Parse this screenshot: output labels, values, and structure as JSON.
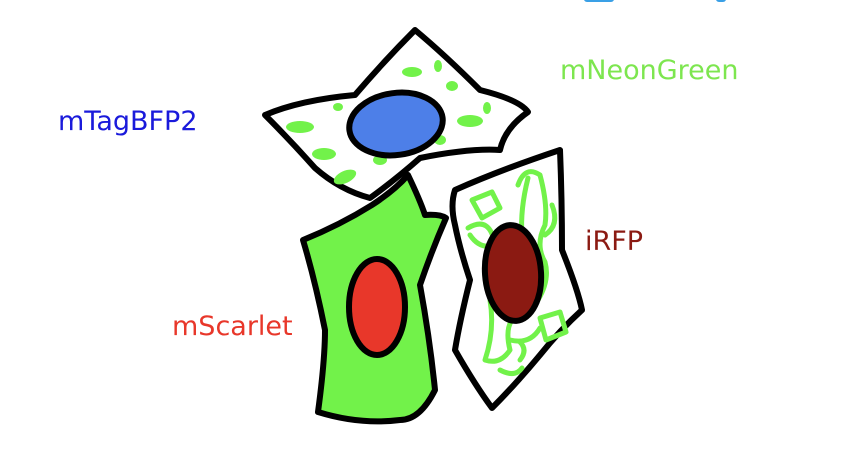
{
  "labels": {
    "blue": "mTagBFP2",
    "green": "mNeonGreen",
    "farred": "iRFP",
    "red": "mScarlet"
  },
  "colors": {
    "blue_text": "#1a1adb",
    "green_text": "#7de64f",
    "farred_text": "#8b1a12",
    "red_text": "#e8372a",
    "nucleus_blue": "#4d7fe8",
    "nucleus_red": "#e8372a",
    "nucleus_darkred": "#8b1a12",
    "green_fill": "#72f24a",
    "outline": "#000000",
    "top_stub": "#3aa0e6"
  },
  "icons": {
    "cell_top": "fibroblast-cell-icon",
    "cell_green": "fibroblast-cell-icon",
    "cell_right": "fibroblast-cell-icon"
  }
}
